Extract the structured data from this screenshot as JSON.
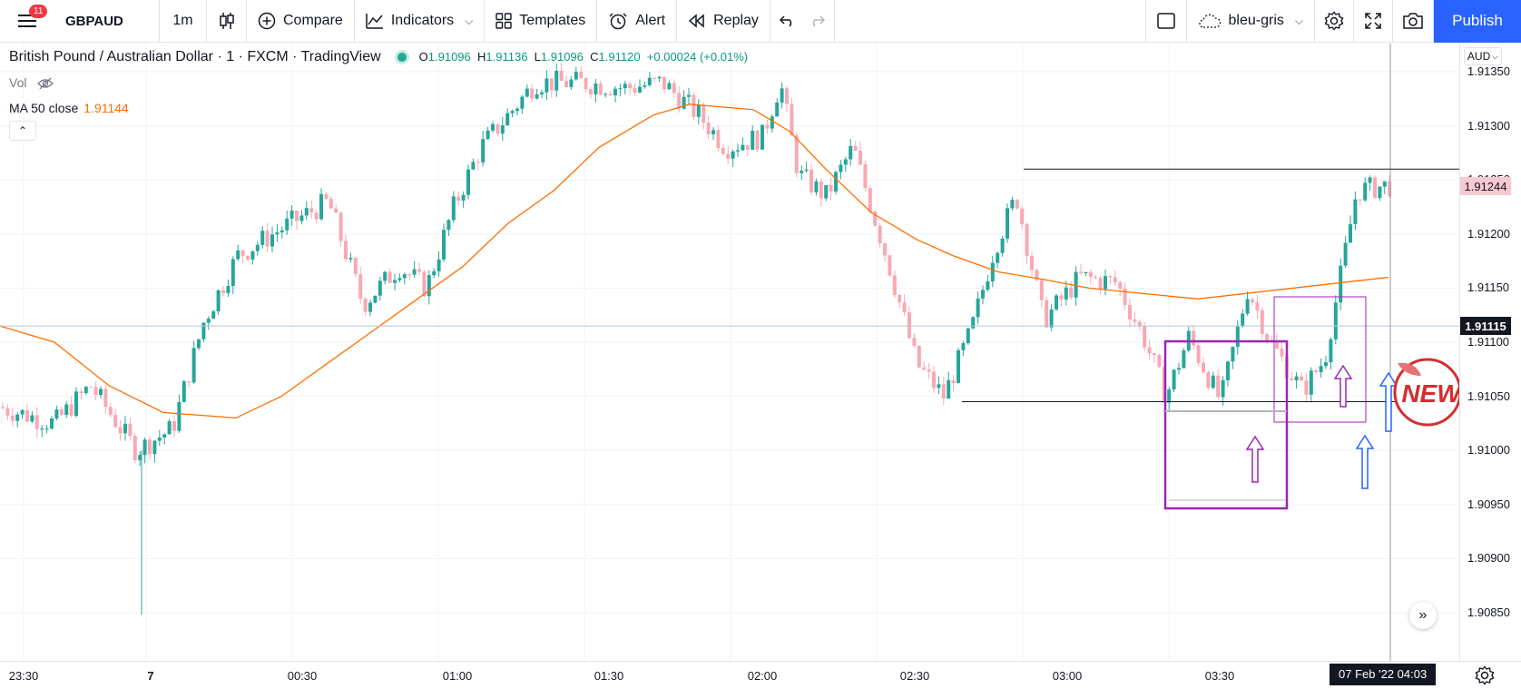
{
  "toolbar": {
    "menu_badge": "11",
    "symbol": "GBPAUD",
    "interval": "1m",
    "compare_label": "Compare",
    "indicators_label": "Indicators",
    "templates_label": "Templates",
    "alert_label": "Alert",
    "replay_label": "Replay",
    "layout_name": "bleu-gris",
    "publish_label": "Publish"
  },
  "legend": {
    "title": "British Pound / Australian Dollar · 1 · FXCM · TradingView",
    "open_key": "O",
    "open": "1.91096",
    "high_key": "H",
    "high": "1.91136",
    "low_key": "L",
    "low": "1.91096",
    "close_key": "C",
    "close": "1.91120",
    "change": "+0.00024 (+0.01%)",
    "vol_label": "Vol",
    "ma_label": "MA 50 close",
    "ma_value": "1.91144"
  },
  "price_scale": {
    "currency": "AUD",
    "ticks": [
      "1.91350",
      "1.91300",
      "1.91250",
      "1.91200",
      "1.91150",
      "1.91100",
      "1.91050",
      "1.91000",
      "1.90950",
      "1.90900",
      "1.90850"
    ],
    "current_price": "1.91244",
    "crosshair_price": "1.91115"
  },
  "time_scale": {
    "ticks": [
      "23:30",
      "7",
      "00:30",
      "01:00",
      "01:30",
      "02:00",
      "02:30",
      "03:00",
      "03:30"
    ],
    "crosshair_time": "07 Feb '22  04:03"
  },
  "annotations": {
    "new_badge": "NEW"
  },
  "colors": {
    "up": "#26a69a",
    "down": "#f7a9b4",
    "ma": "#ff6d00",
    "box": "#9c27b0",
    "arrow_blue": "#2962ff",
    "accent": "#2962ff"
  },
  "chart_data": {
    "type": "candlestick",
    "symbol": "GBPAUD",
    "interval": "1m",
    "ylim": [
      1.9083,
      1.9139
    ],
    "price_grid": [
      1.9135,
      1.913,
      1.9125,
      1.912,
      1.9115,
      1.911,
      1.9105,
      1.91,
      1.9095,
      1.909,
      1.9085
    ],
    "ma_anchor_prices": [
      1.91115,
      1.911,
      1.9106,
      1.91035,
      1.91032,
      1.9103,
      1.9105,
      1.9108,
      1.9111,
      1.9114,
      1.9117,
      1.9121,
      1.9124,
      1.9128,
      1.9131,
      1.9132,
      1.91315,
      1.91295,
      1.9126,
      1.9122,
      1.91195,
      1.9118,
      1.91165,
      1.91158,
      1.9115,
      1.91145,
      1.9114,
      1.9116
    ],
    "support_price": 1.91045,
    "resistance_price": 1.9126,
    "crosshair_price": 1.91115,
    "last_price": 1.91244
  }
}
